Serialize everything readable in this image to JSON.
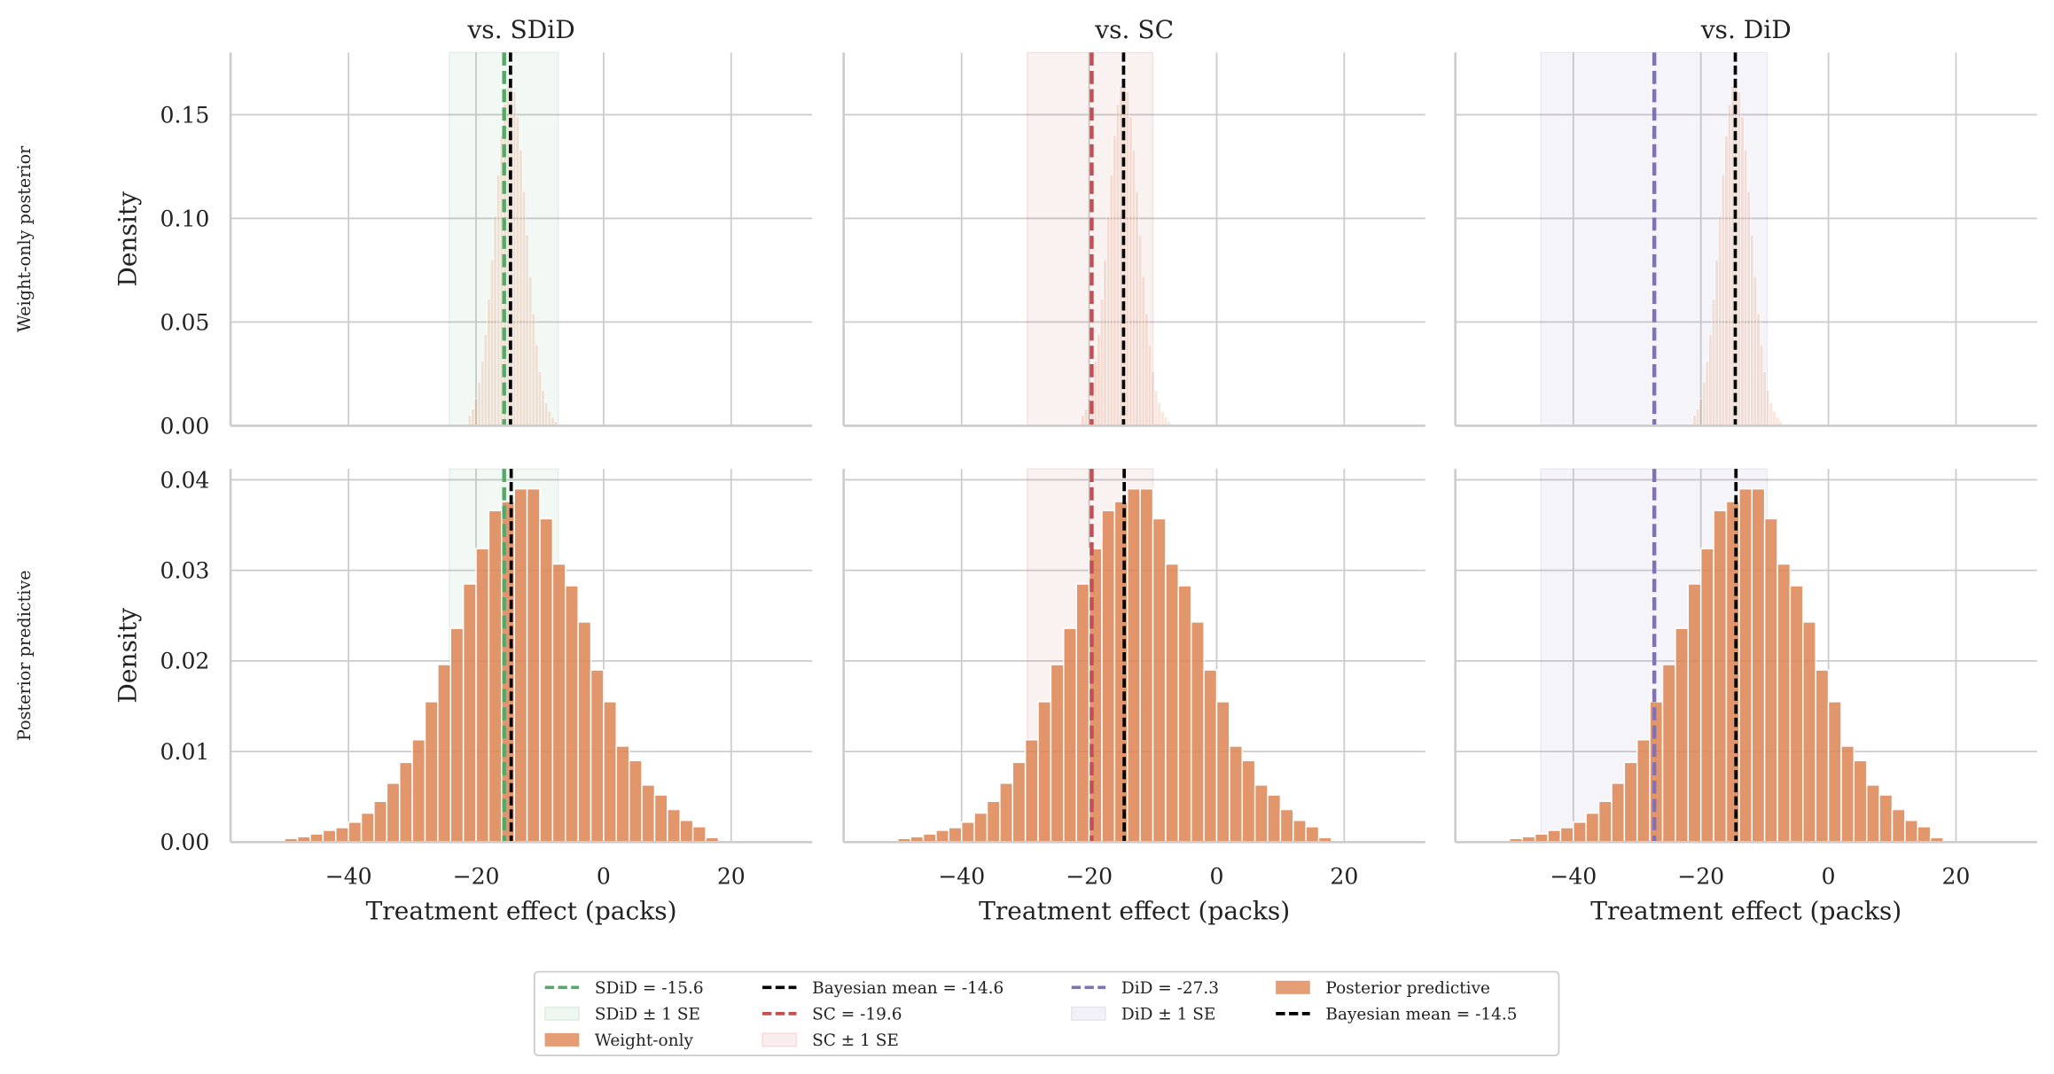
{
  "chart_data": {
    "type": "bar",
    "layout": "2 rows x 3 columns histogram grid, shared axes",
    "column_titles": [
      "vs. SDiD",
      "vs. SC",
      "vs. DiD"
    ],
    "row_labels": [
      "Weight-only posterior",
      "Posterior predictive"
    ],
    "ylabel": "Density",
    "xlabel": "Treatment effect (packs)",
    "xlim": [
      -58.5,
      32.7
    ],
    "xticks": [
      -40,
      -20,
      0,
      20
    ],
    "xtick_labels": [
      "−40",
      "−20",
      "0",
      "20"
    ],
    "rows": [
      {
        "ylim": [
          0,
          0.18
        ],
        "yticks": [
          0,
          0.05,
          0.1,
          0.15
        ],
        "ytick_labels": [
          "0.00",
          "0.05",
          "0.10",
          "0.15"
        ],
        "histogram": {
          "name": "Weight-only",
          "bin_width": 0.5,
          "centers": [
            -21,
            -20.5,
            -20,
            -19.5,
            -19,
            -18.5,
            -18,
            -17.5,
            -17,
            -16.5,
            -16,
            -15.5,
            -15,
            -14.5,
            -14,
            -13.5,
            -13,
            -12.5,
            -12,
            -11.5,
            -11,
            -10.5,
            -10,
            -9.5,
            -9,
            -8.5,
            -8,
            -7.5
          ],
          "values": [
            0.005,
            0.008,
            0.013,
            0.021,
            0.031,
            0.044,
            0.061,
            0.08,
            0.101,
            0.121,
            0.14,
            0.155,
            0.164,
            0.166,
            0.161,
            0.149,
            0.133,
            0.113,
            0.092,
            0.072,
            0.054,
            0.039,
            0.026,
            0.017,
            0.011,
            0.007,
            0.004,
            0.002
          ],
          "color": "#dd8452",
          "alpha": 0.2
        },
        "bayesian_mean": -14.6
      },
      {
        "ylim": [
          0,
          0.0412
        ],
        "yticks": [
          0,
          0.01,
          0.02,
          0.03,
          0.04
        ],
        "ytick_labels": [
          "0.00",
          "0.01",
          "0.02",
          "0.03",
          "0.04"
        ],
        "histogram": {
          "name": "Posterior predictive",
          "bin_width": 2,
          "centers": [
            -49,
            -47,
            -45,
            -43,
            -41,
            -39,
            -37,
            -35,
            -33,
            -31,
            -29,
            -27,
            -25,
            -23,
            -21,
            -19,
            -17,
            -15,
            -13,
            -11,
            -9,
            -7,
            -5,
            -3,
            -1,
            1,
            3,
            5,
            7,
            9,
            11,
            13,
            15,
            17
          ],
          "values": [
            0.0004,
            0.0006,
            0.0009,
            0.0013,
            0.0016,
            0.0022,
            0.0032,
            0.0045,
            0.0065,
            0.0088,
            0.0113,
            0.0155,
            0.0196,
            0.0236,
            0.0285,
            0.0324,
            0.0366,
            0.0376,
            0.039,
            0.039,
            0.0357,
            0.0307,
            0.0283,
            0.0243,
            0.019,
            0.0155,
            0.0106,
            0.009,
            0.0063,
            0.0052,
            0.0036,
            0.0024,
            0.0017,
            0.0005
          ],
          "color": "#dd8452",
          "alpha": 0.85
        },
        "bayesian_mean": -14.5
      }
    ],
    "comparisons": [
      {
        "name": "SDiD",
        "estimate": -15.6,
        "se_band": [
          -24.2,
          -7.1
        ],
        "color": "#55a868"
      },
      {
        "name": "SC",
        "estimate": -19.6,
        "se_band": [
          -29.7,
          -10.0
        ],
        "color": "#c44e52"
      },
      {
        "name": "DiD",
        "estimate": -27.3,
        "se_band": [
          -45.1,
          -9.6
        ],
        "color": "#8172b3"
      }
    ],
    "legend": {
      "placement": "bottom-center",
      "columns": [
        [
          {
            "label": "SDiD = -15.6",
            "kind": "dash",
            "color": "#55a868"
          },
          {
            "label": "SDiD ± 1 SE",
            "kind": "patch",
            "color": "#55a868",
            "alpha": 0.1
          },
          {
            "label": "Weight-only",
            "kind": "patch",
            "color": "#dd8452",
            "alpha": 0.8
          }
        ],
        [
          {
            "label": "Bayesian mean = -14.6",
            "kind": "dash",
            "color": "#000000"
          },
          {
            "label": "SC = -19.6",
            "kind": "dash",
            "color": "#c44e52"
          },
          {
            "label": "SC ± 1 SE",
            "kind": "patch",
            "color": "#c44e52",
            "alpha": 0.1
          }
        ],
        [
          {
            "label": "DiD = -27.3",
            "kind": "dash",
            "color": "#8172b3"
          },
          {
            "label": "DiD ± 1 SE",
            "kind": "patch",
            "color": "#8172b3",
            "alpha": 0.1
          }
        ],
        [
          {
            "label": "Posterior predictive",
            "kind": "patch",
            "color": "#dd8452",
            "alpha": 0.8
          },
          {
            "label": "Bayesian mean = -14.5",
            "kind": "dash",
            "color": "#000000"
          }
        ]
      ]
    },
    "grid": true
  }
}
